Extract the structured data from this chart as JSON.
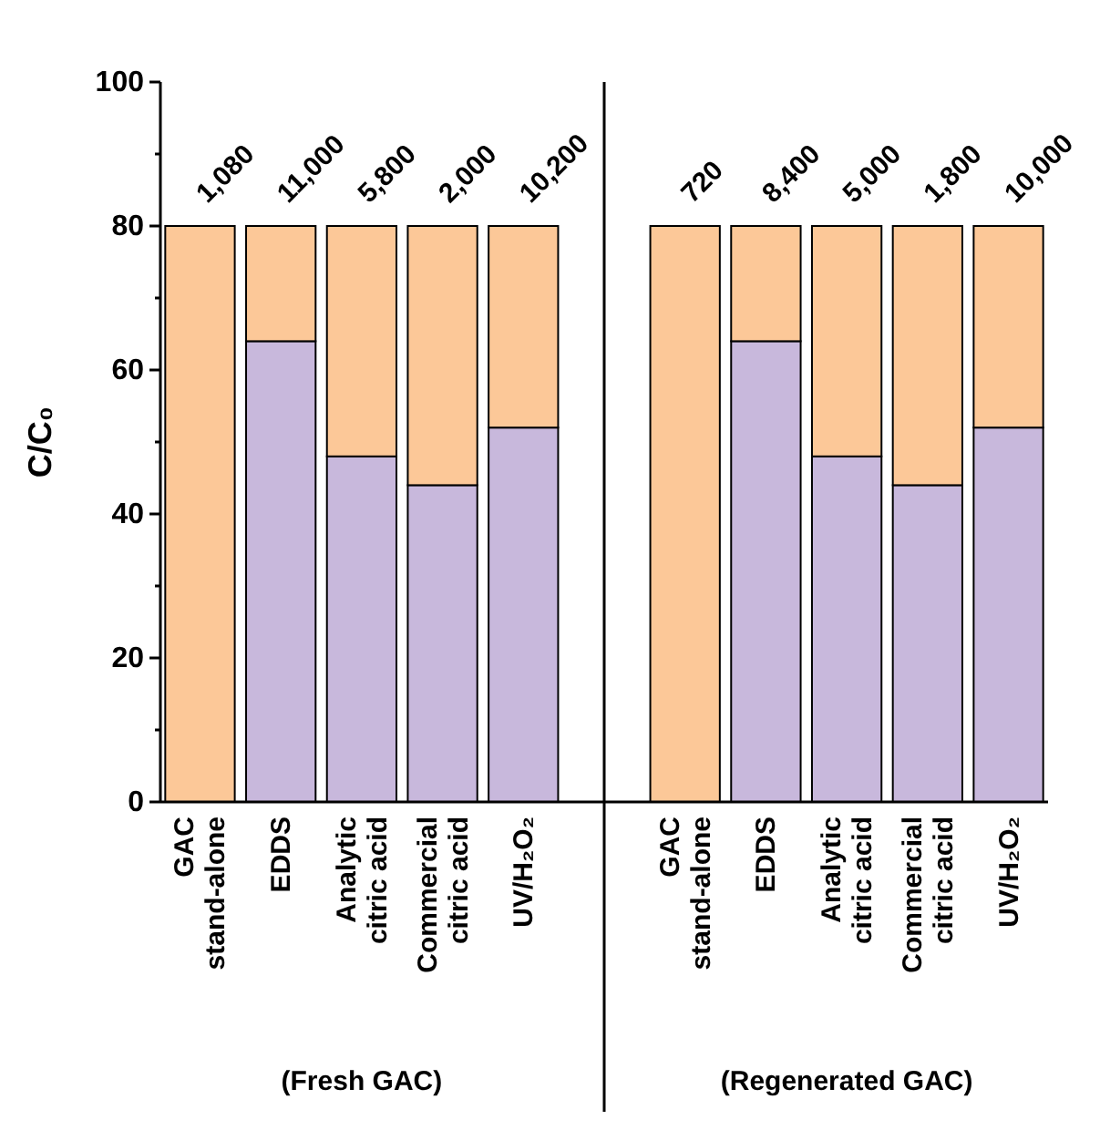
{
  "chart_data": {
    "type": "bar",
    "stacked": true,
    "ylabel": "C/C₀",
    "categories": [
      "GAC\nstand-alone",
      "EDDS",
      "Analytic\ncitric acid",
      "Commercial\ncitric acid",
      "UV/H₂O₂",
      null,
      "GAC\nstand-alone",
      "EDDS",
      "Analytic\ncitric acid",
      "Commercial\ncitric acid",
      "UV/H₂O₂"
    ],
    "series": [
      {
        "color": "#c8b8dc",
        "values": [
          0,
          64,
          48,
          44,
          52,
          null,
          0,
          64,
          48,
          44,
          52
        ]
      },
      {
        "color": "#fcc898",
        "values": [
          80,
          16,
          32,
          36,
          28,
          null,
          80,
          16,
          32,
          36,
          28
        ]
      }
    ],
    "ylim": [
      0,
      100
    ],
    "yticks": [
      0,
      {
        "value": 10,
        "label": null
      },
      20,
      {
        "value": 30,
        "label": null
      },
      40,
      {
        "value": 50,
        "label": null
      },
      60,
      {
        "value": 70,
        "label": null
      },
      80,
      {
        "value": 90,
        "label": null
      },
      100
    ],
    "annotations": [
      "1,080",
      "11,000",
      "5,800",
      "2,000",
      "10,200",
      "720",
      "8,400",
      "5,000",
      "1,800",
      "10,000",
      "(Fresh GAC)",
      "(Regenerated GAC)"
    ]
  }
}
